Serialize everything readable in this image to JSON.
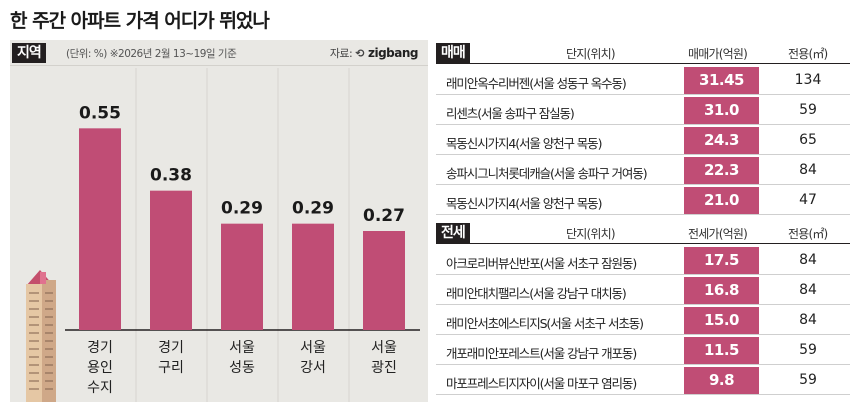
{
  "title": "한 주간 아파트 가격 어디가 뛰었나",
  "colors": {
    "bar": "#c04d75",
    "panel_bg": "#e9e8e4",
    "tag_bg": "#231f20"
  },
  "left_panel": {
    "tag": "지역",
    "unit": "(단위: %)",
    "date_note": "※2026년 2월 13~19일 기준",
    "source_label": "자료:",
    "source_brand": "zigbang"
  },
  "chart_data": {
    "type": "bar",
    "categories": [
      "경기 용인 수지",
      "경기 구리",
      "서울 성동",
      "서울 강서",
      "서울 광진"
    ],
    "category_lines": [
      [
        "경기",
        "용인",
        "수지"
      ],
      [
        "경기",
        "구리"
      ],
      [
        "서울",
        "성동"
      ],
      [
        "서울",
        "강서"
      ],
      [
        "서울",
        "광진"
      ]
    ],
    "values": [
      0.55,
      0.38,
      0.29,
      0.29,
      0.27
    ],
    "value_labels": [
      "0.55",
      "0.38",
      "0.29",
      "0.29",
      "0.27"
    ],
    "ylim": [
      0,
      0.6
    ],
    "grid": false
  },
  "sale": {
    "tag": "매매",
    "headers": {
      "name": "단지(위치)",
      "price": "매매가(억원)",
      "area": "전용(㎡)"
    },
    "rows": [
      {
        "name": "래미안옥수리버젠(서울 성동구 옥수동)",
        "price": "31.45",
        "area": "134"
      },
      {
        "name": "리센츠(서울 송파구 잠실동)",
        "price": "31.0",
        "area": "59"
      },
      {
        "name": "목동신시가지4(서울 양천구 목동)",
        "price": "24.3",
        "area": "65"
      },
      {
        "name": "송파시그니처롯데캐슬(서울 송파구 거여동)",
        "price": "22.3",
        "area": "84"
      },
      {
        "name": "목동신시가지4(서울 양천구 목동)",
        "price": "21.0",
        "area": "47"
      }
    ]
  },
  "lease": {
    "tag": "전세",
    "headers": {
      "name": "단지(위치)",
      "price": "전세가(억원)",
      "area": "전용(㎡)"
    },
    "rows": [
      {
        "name": "아크로리버뷰신반포(서울 서초구 잠원동)",
        "price": "17.5",
        "area": "84"
      },
      {
        "name": "래미안대치팰리스(서울 강남구 대치동)",
        "price": "16.8",
        "area": "84"
      },
      {
        "name": "래미안서초에스티지S(서울 서초구 서초동)",
        "price": "15.0",
        "area": "84"
      },
      {
        "name": "개포래미안포레스트(서울 강남구 개포동)",
        "price": "11.5",
        "area": "59"
      },
      {
        "name": "마포프레스티지자이(서울 마포구 염리동)",
        "price": "9.8",
        "area": "59"
      }
    ]
  }
}
